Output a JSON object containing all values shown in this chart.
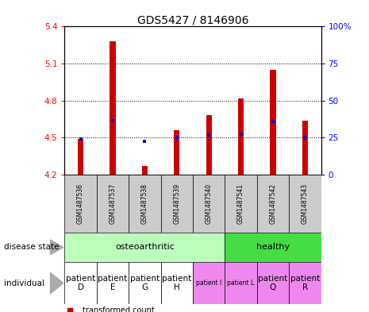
{
  "title": "GDS5427 / 8146906",
  "samples": [
    "GSM1487536",
    "GSM1487537",
    "GSM1487538",
    "GSM1487539",
    "GSM1487540",
    "GSM1487541",
    "GSM1487542",
    "GSM1487543"
  ],
  "bar_values": [
    4.49,
    5.28,
    4.27,
    4.56,
    4.68,
    4.82,
    5.05,
    4.64
  ],
  "bar_bottom": 4.2,
  "percentile_values": [
    4.49,
    4.64,
    4.47,
    4.5,
    4.52,
    4.53,
    4.63,
    4.5
  ],
  "ylim": [
    4.2,
    5.4
  ],
  "yticks": [
    4.2,
    4.5,
    4.8,
    5.1,
    5.4
  ],
  "right_yticks": [
    0,
    25,
    50,
    75,
    100
  ],
  "bar_color": "#cc0000",
  "dot_color": "#0000cc",
  "gsm_bg": "#cccccc",
  "oa_color": "#aaeea a",
  "healthy_color": "#44dd44",
  "oa_color_light": "#bbffbb",
  "ind_white": "#ffffff",
  "ind_pink": "#ee88ee",
  "bar_width": 0.18
}
